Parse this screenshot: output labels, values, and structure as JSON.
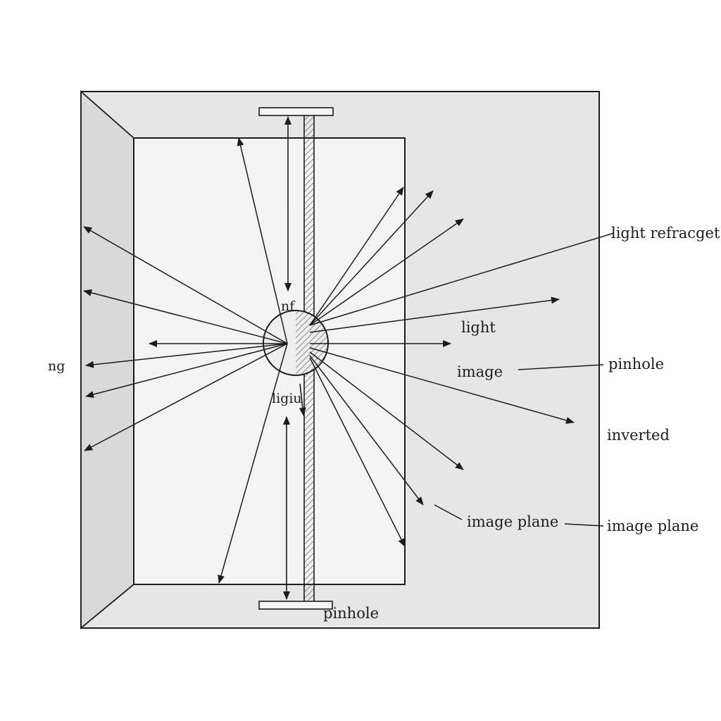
{
  "diagram": {
    "colors": {
      "background": "#ffffff",
      "outer_box_fill": "#e6e6e6",
      "inner_panel_fill": "#f3f3f3",
      "line": "#1c1c1c",
      "barrier_hatch": "#555555"
    },
    "labels": {
      "light_refracget": "light refracget",
      "light": "light",
      "image": "image",
      "pinhole_right": "pinhole",
      "inverted": "inverted",
      "image_plane_mid": "image plane",
      "image_plane_right": "image plane",
      "pinhole_bottom": "pinhole",
      "ng": "ng",
      "nf": "nf",
      "ligiu": "ligiu"
    }
  }
}
